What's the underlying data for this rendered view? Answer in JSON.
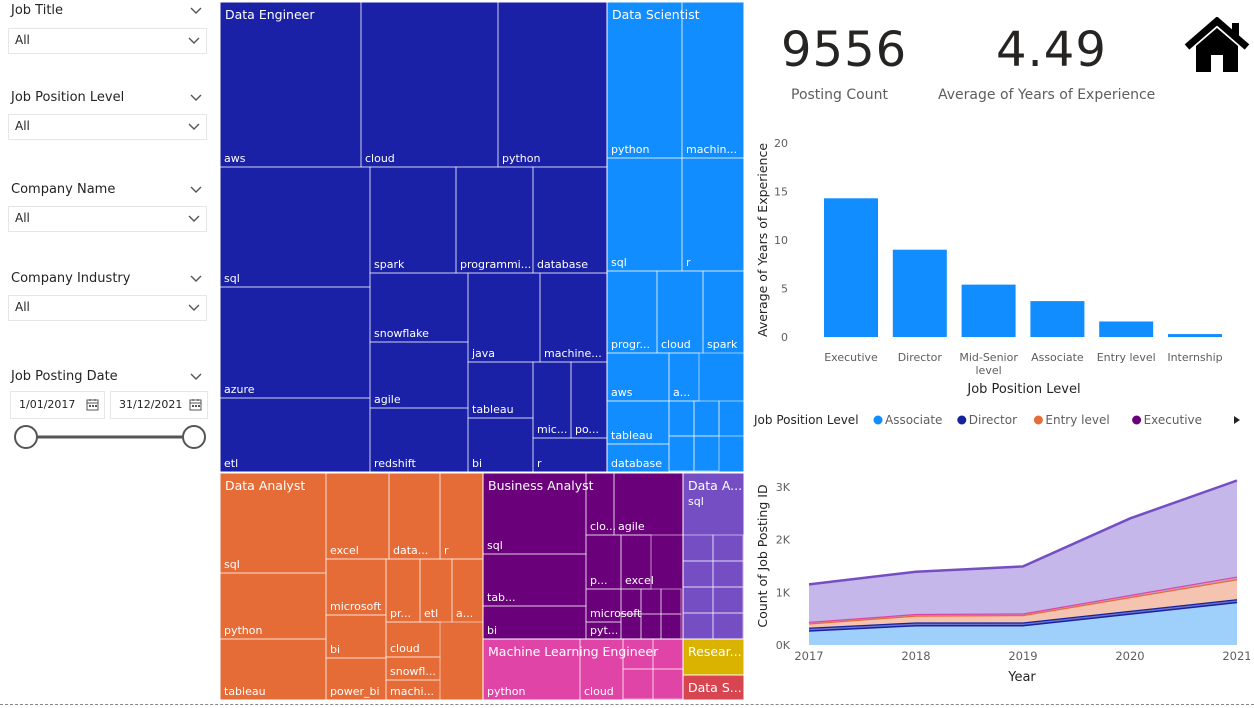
{
  "slicers": [
    {
      "title": "Job Title",
      "value": "All"
    },
    {
      "title": "Job Position Level",
      "value": "All"
    },
    {
      "title": "Company Name",
      "value": "All"
    },
    {
      "title": "Company Industry",
      "value": "All"
    }
  ],
  "date_slicer": {
    "title": "Job Posting Date",
    "start": "1/01/2017",
    "end": "31/12/2021"
  },
  "cards": {
    "posting_count": {
      "value": "9556",
      "label": "Posting Count"
    },
    "avg_years": {
      "value": "4.49",
      "label": "Average of Years of Experience"
    }
  },
  "icons": {
    "home": "home-icon",
    "calendar": "calendar-icon",
    "chevron": "chevron-down-icon",
    "legend_more": "play-arrow-icon"
  },
  "colors": {
    "blue_dark": "#1a21a6",
    "blue_light": "#118dff",
    "orange": "#e66c37",
    "purple": "#6b007b",
    "pink": "#e044a7",
    "lilac": "#744ec2",
    "yellow": "#d9b300",
    "red": "#d64550"
  },
  "chart_data": [
    {
      "type": "treemap",
      "groups": [
        {
          "name": "Data Engineer",
          "color": "#1a21a6",
          "tiles": [
            "aws",
            "cloud",
            "python",
            "sql",
            "spark",
            "programmi...",
            "database",
            "snowflake",
            "java",
            "machine...",
            "azure",
            "agile",
            "tableau",
            "mic...",
            "po...",
            "etl",
            "redshift",
            "bi",
            "r"
          ]
        },
        {
          "name": "Data Scientist",
          "color": "#118dff",
          "tiles": [
            "python",
            "machin...",
            "sql",
            "r",
            "progr...",
            "cloud",
            "spark",
            "aws",
            "a...",
            "tableau",
            "database"
          ]
        },
        {
          "name": "Data Analyst",
          "color": "#e66c37",
          "tiles": [
            "sql",
            "excel",
            "data...",
            "r",
            "microsoft",
            "pr...",
            "etl",
            "a...",
            "python",
            "bi",
            "cloud",
            "snowfl...",
            "tableau",
            "power_bi",
            "machi..."
          ]
        },
        {
          "name": "Business Analyst",
          "color": "#6b007b",
          "tiles": [
            "sql",
            "clo...",
            "agile",
            "tab...",
            "p...",
            "excel",
            "bi",
            "microsoft",
            "pyt..."
          ]
        },
        {
          "name": "Data A...",
          "color": "#744ec2",
          "tiles": [
            "sql"
          ]
        },
        {
          "name": "Machine Learning Engineer",
          "color": "#e044a7",
          "tiles": [
            "python",
            "cloud"
          ]
        },
        {
          "name": "Resear...",
          "color": "#d9b300",
          "tiles": []
        },
        {
          "name": "Data S...",
          "color": "#d64550",
          "tiles": []
        }
      ]
    },
    {
      "type": "bar",
      "categories": [
        "Executive",
        "Director",
        "Mid-Senior level",
        "Associate",
        "Entry level",
        "Internship"
      ],
      "category_lines": [
        [
          "Executive"
        ],
        [
          "Director"
        ],
        [
          "Mid-Senior",
          "level"
        ],
        [
          "Associate"
        ],
        [
          "Entry level"
        ],
        [
          "Internship"
        ]
      ],
      "values": [
        14.3,
        9.0,
        5.4,
        3.7,
        1.6,
        0.3
      ],
      "xlabel": "Job Position Level",
      "ylabel": "Average of Years of Experience",
      "ylim": [
        0,
        20
      ],
      "yticks": [
        0,
        5,
        10,
        15,
        20
      ],
      "color": "#118dff"
    },
    {
      "type": "area",
      "x": [
        "2017",
        "2018",
        "2019",
        "2020",
        "2021"
      ],
      "series": [
        {
          "name": "Associate",
          "color": "#118dff",
          "values": [
            280,
            380,
            380,
            600,
            820
          ]
        },
        {
          "name": "Director",
          "color": "#12239e",
          "values": [
            50,
            50,
            50,
            50,
            50
          ]
        },
        {
          "name": "Entry level",
          "color": "#e66c37",
          "values": [
            80,
            130,
            140,
            260,
            380
          ]
        },
        {
          "name": "Executive",
          "color": "#6b007b",
          "values": [
            30,
            30,
            30,
            40,
            50
          ]
        },
        {
          "name": "",
          "color": "#744ec2",
          "values": [
            710,
            800,
            890,
            1450,
            1820
          ]
        }
      ],
      "legend_title": "Job Position Level",
      "legend_items": [
        "Associate",
        "Director",
        "Entry level",
        "Executive"
      ],
      "xlabel": "Year",
      "ylabel": "Count of Job Posting ID",
      "yticks": [
        "0K",
        "1K",
        "2K",
        "3K"
      ],
      "ylim": [
        0,
        3300
      ]
    }
  ]
}
